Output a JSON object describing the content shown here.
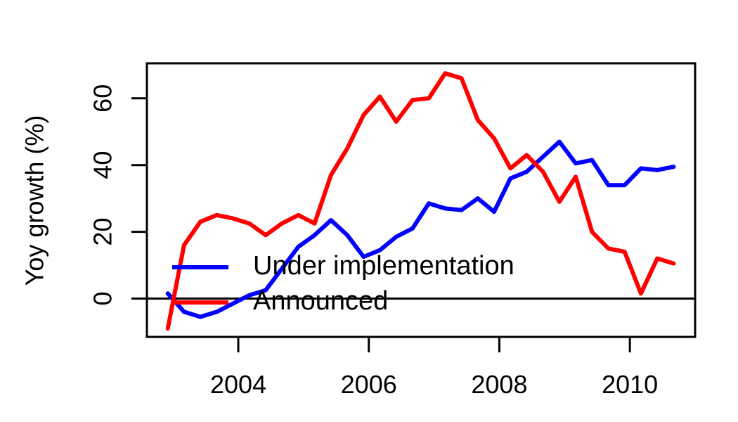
{
  "chart_data": {
    "type": "line",
    "title": "",
    "xlabel": "",
    "ylabel": "Yoy growth (%)",
    "xlim": [
      2002.6,
      2011.0
    ],
    "ylim": [
      -11.5,
      70.5
    ],
    "x_ticks": [
      2004,
      2006,
      2008,
      2010
    ],
    "x_tick_labels": [
      "2004",
      "2006",
      "2008",
      "2010"
    ],
    "y_ticks": [
      0,
      20,
      40,
      60
    ],
    "y_tick_labels": [
      "0",
      "20",
      "40",
      "60"
    ],
    "reference_line_y": 0,
    "grid": false,
    "legend_position": "bottom-left",
    "series": [
      {
        "name": "Under implementation",
        "color": "#0000ff",
        "x": [
          2002.92,
          2003.17,
          2003.42,
          2003.67,
          2003.92,
          2004.17,
          2004.42,
          2004.67,
          2004.92,
          2005.17,
          2005.42,
          2005.67,
          2005.92,
          2006.17,
          2006.42,
          2006.67,
          2006.92,
          2007.17,
          2007.42,
          2007.67,
          2007.92,
          2008.17,
          2008.42,
          2008.67,
          2008.92,
          2009.17,
          2009.42,
          2009.67,
          2009.92,
          2010.17,
          2010.42,
          2010.67
        ],
        "y": [
          1.5,
          -4,
          -5.5,
          -4,
          -1.5,
          1,
          2.5,
          9,
          15.5,
          19,
          23.5,
          19,
          12.5,
          14.5,
          18.5,
          21,
          28.5,
          27,
          26.5,
          30,
          26,
          36,
          38,
          42.5,
          47,
          40.5,
          41.5,
          34,
          34,
          39,
          38.5,
          39.5
        ]
      },
      {
        "name": "Announced",
        "color": "#ff0000",
        "x": [
          2002.92,
          2003.17,
          2003.42,
          2003.67,
          2003.92,
          2004.17,
          2004.42,
          2004.67,
          2004.92,
          2005.17,
          2005.42,
          2005.67,
          2005.92,
          2006.17,
          2006.42,
          2006.67,
          2006.92,
          2007.17,
          2007.42,
          2007.67,
          2007.92,
          2008.17,
          2008.42,
          2008.67,
          2008.92,
          2009.17,
          2009.42,
          2009.67,
          2009.92,
          2010.17,
          2010.42,
          2010.67
        ],
        "y": [
          -9,
          16,
          23,
          25,
          24,
          22.5,
          19,
          22.5,
          25,
          22.5,
          37,
          45,
          55,
          60.5,
          53,
          59.5,
          60,
          67.5,
          66,
          53.5,
          48,
          39,
          43,
          38,
          29,
          36.5,
          20,
          15,
          14,
          1.5,
          12,
          10.5
        ]
      }
    ]
  }
}
